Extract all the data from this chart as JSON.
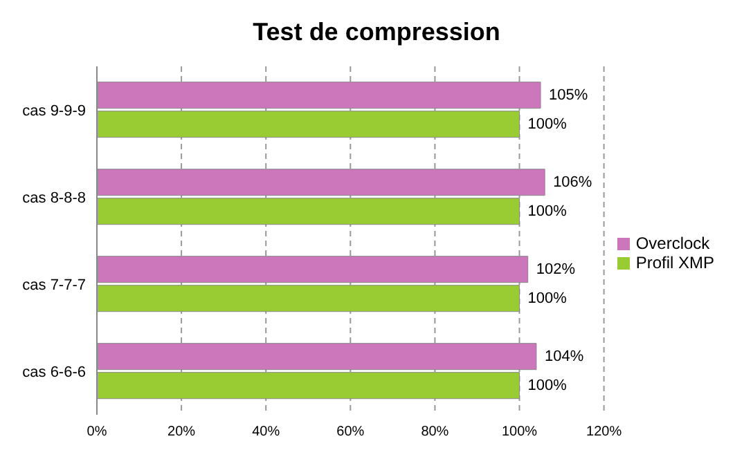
{
  "chart_data": {
    "type": "bar",
    "orientation": "horizontal",
    "title": "Test de compression",
    "categories": [
      "cas 9-9-9",
      "cas 8-8-8",
      "cas 7-7-7",
      "cas 6-6-6"
    ],
    "series": [
      {
        "name": "Overclock",
        "color": "#cc77bb",
        "values": [
          105,
          106,
          102,
          104
        ],
        "value_labels": [
          "105%",
          "106%",
          "102%",
          "104%"
        ]
      },
      {
        "name": "Profil XMP",
        "color": "#99cc33",
        "values": [
          100,
          100,
          100,
          100
        ],
        "value_labels": [
          "100%",
          "100%",
          "100%",
          "100%"
        ]
      }
    ],
    "xlim": [
      0,
      120
    ],
    "xticks": [
      {
        "value": 0,
        "label": "0%"
      },
      {
        "value": 20,
        "label": "20%"
      },
      {
        "value": 40,
        "label": "40%"
      },
      {
        "value": 60,
        "label": "60%"
      },
      {
        "value": 80,
        "label": "80%"
      },
      {
        "value": 100,
        "label": "100%"
      },
      {
        "value": 120,
        "label": "120%"
      }
    ],
    "grid": "x",
    "legend": "right"
  }
}
